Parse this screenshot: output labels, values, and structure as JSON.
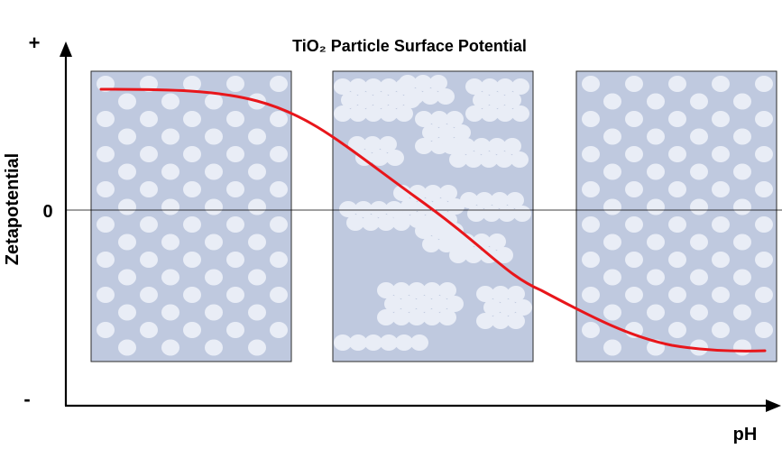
{
  "title": "TiO₂ Particle Surface Potential",
  "y_axis": {
    "label": "Zetapotential",
    "top_sign": "+",
    "bottom_sign": "-",
    "zero_label": "0"
  },
  "x_axis": {
    "label": "pH"
  },
  "colors": {
    "curve": "#e8161b",
    "panel_fill": "#bfc9df",
    "particle": "#e9edf6",
    "axis": "#000000"
  },
  "panels": [
    {
      "name": "low-pH",
      "arrangement": "dispersed"
    },
    {
      "name": "isoelectric-point",
      "arrangement": "agglomerated"
    },
    {
      "name": "high-pH",
      "arrangement": "dispersed"
    }
  ],
  "curve": {
    "shape": "sigmoid-decreasing",
    "crosses_zero": true
  }
}
